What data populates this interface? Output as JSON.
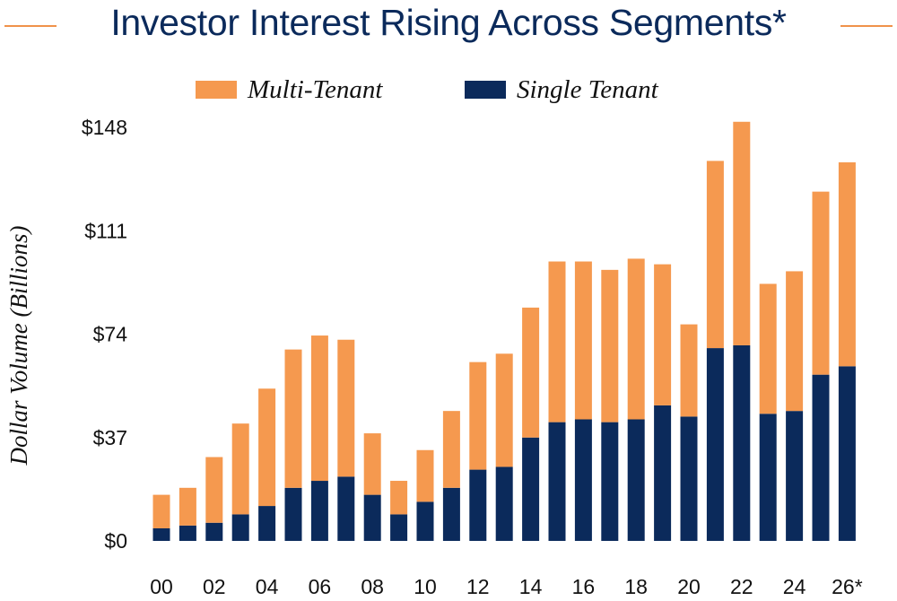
{
  "colors": {
    "single_tenant": "#0b2a5b",
    "multi_tenant": "#f5994f",
    "accent_line": "#f0924a",
    "title": "#0b2a5b"
  },
  "chart_data": {
    "type": "bar",
    "stacked": true,
    "title": "Investor Interest Rising Across Segments*",
    "xlabel": "",
    "ylabel": "Dollar Volume (Billions)",
    "ylim": [
      0,
      148
    ],
    "yticks": [
      0,
      37,
      74,
      111,
      148
    ],
    "ytick_labels": [
      "$0",
      "$37",
      "$74",
      "$111",
      "$148"
    ],
    "xtick_labels": [
      "00",
      "02",
      "04",
      "06",
      "08",
      "10",
      "12",
      "14",
      "16",
      "18",
      "20",
      "22",
      "24",
      "26*"
    ],
    "legend_position": "top",
    "grid": false,
    "categories": [
      "2000",
      "2001",
      "2002",
      "2003",
      "2004",
      "2005",
      "2006",
      "2007",
      "2008",
      "2009",
      "2010",
      "2011",
      "2012",
      "2013",
      "2014",
      "2015",
      "2016",
      "2017",
      "2018",
      "2019",
      "2020",
      "2021",
      "2022",
      "2023",
      "2024",
      "2025",
      "2026*"
    ],
    "series": [
      {
        "name": "Single Tenant",
        "values": [
          4.5,
          5.5,
          6.5,
          9.5,
          12.5,
          19.0,
          21.5,
          23.0,
          16.5,
          9.5,
          14.0,
          19.0,
          25.5,
          26.5,
          37.0,
          42.5,
          43.5,
          42.5,
          43.5,
          48.5,
          44.5,
          69.0,
          70.0,
          45.5,
          46.5,
          59.5,
          62.5
        ]
      },
      {
        "name": "Multi-Tenant",
        "values": [
          12.0,
          13.5,
          23.5,
          32.5,
          42.0,
          49.5,
          52.0,
          49.0,
          22.0,
          12.0,
          18.5,
          27.5,
          38.5,
          40.5,
          46.5,
          57.5,
          56.5,
          54.5,
          57.5,
          50.5,
          33.0,
          67.0,
          80.0,
          46.5,
          50.0,
          65.5,
          73.0
        ]
      }
    ]
  }
}
